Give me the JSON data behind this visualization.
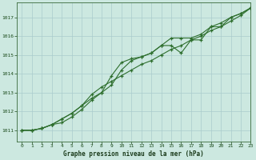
{
  "title": "Graphe pression niveau de la mer (hPa)",
  "bg_color": "#cce8e0",
  "grid_color": "#aacccc",
  "line_color": "#2d6e2d",
  "marker_color": "#2d6e2d",
  "xlim": [
    -0.5,
    23
  ],
  "ylim": [
    1010.4,
    1017.8
  ],
  "yticks": [
    1011,
    1012,
    1013,
    1014,
    1015,
    1016,
    1017
  ],
  "xticks": [
    0,
    1,
    2,
    3,
    4,
    5,
    6,
    7,
    8,
    9,
    10,
    11,
    12,
    13,
    14,
    15,
    16,
    17,
    18,
    19,
    20,
    21,
    22,
    23
  ],
  "series": [
    [
      1011.0,
      1011.0,
      1011.1,
      1011.3,
      1011.4,
      1011.7,
      1012.1,
      1012.6,
      1013.0,
      1013.9,
      1014.6,
      1014.8,
      1014.9,
      1015.1,
      1015.5,
      1015.5,
      1015.1,
      1015.8,
      1015.8,
      1016.5,
      1016.5,
      1017.0,
      1017.2,
      1017.5
    ],
    [
      1011.0,
      1011.0,
      1011.1,
      1011.3,
      1011.6,
      1011.9,
      1012.3,
      1012.7,
      1013.0,
      1013.4,
      1014.2,
      1014.7,
      1014.9,
      1015.1,
      1015.5,
      1015.9,
      1015.9,
      1015.9,
      1016.1,
      1016.5,
      1016.7,
      1017.0,
      1017.2,
      1017.5
    ],
    [
      1011.0,
      1011.0,
      1011.1,
      1011.3,
      1011.6,
      1011.9,
      1012.3,
      1012.9,
      1013.3,
      1013.6,
      1013.9,
      1014.2,
      1014.5,
      1014.7,
      1015.0,
      1015.3,
      1015.5,
      1015.8,
      1016.0,
      1016.3,
      1016.5,
      1016.8,
      1017.1,
      1017.5
    ]
  ]
}
